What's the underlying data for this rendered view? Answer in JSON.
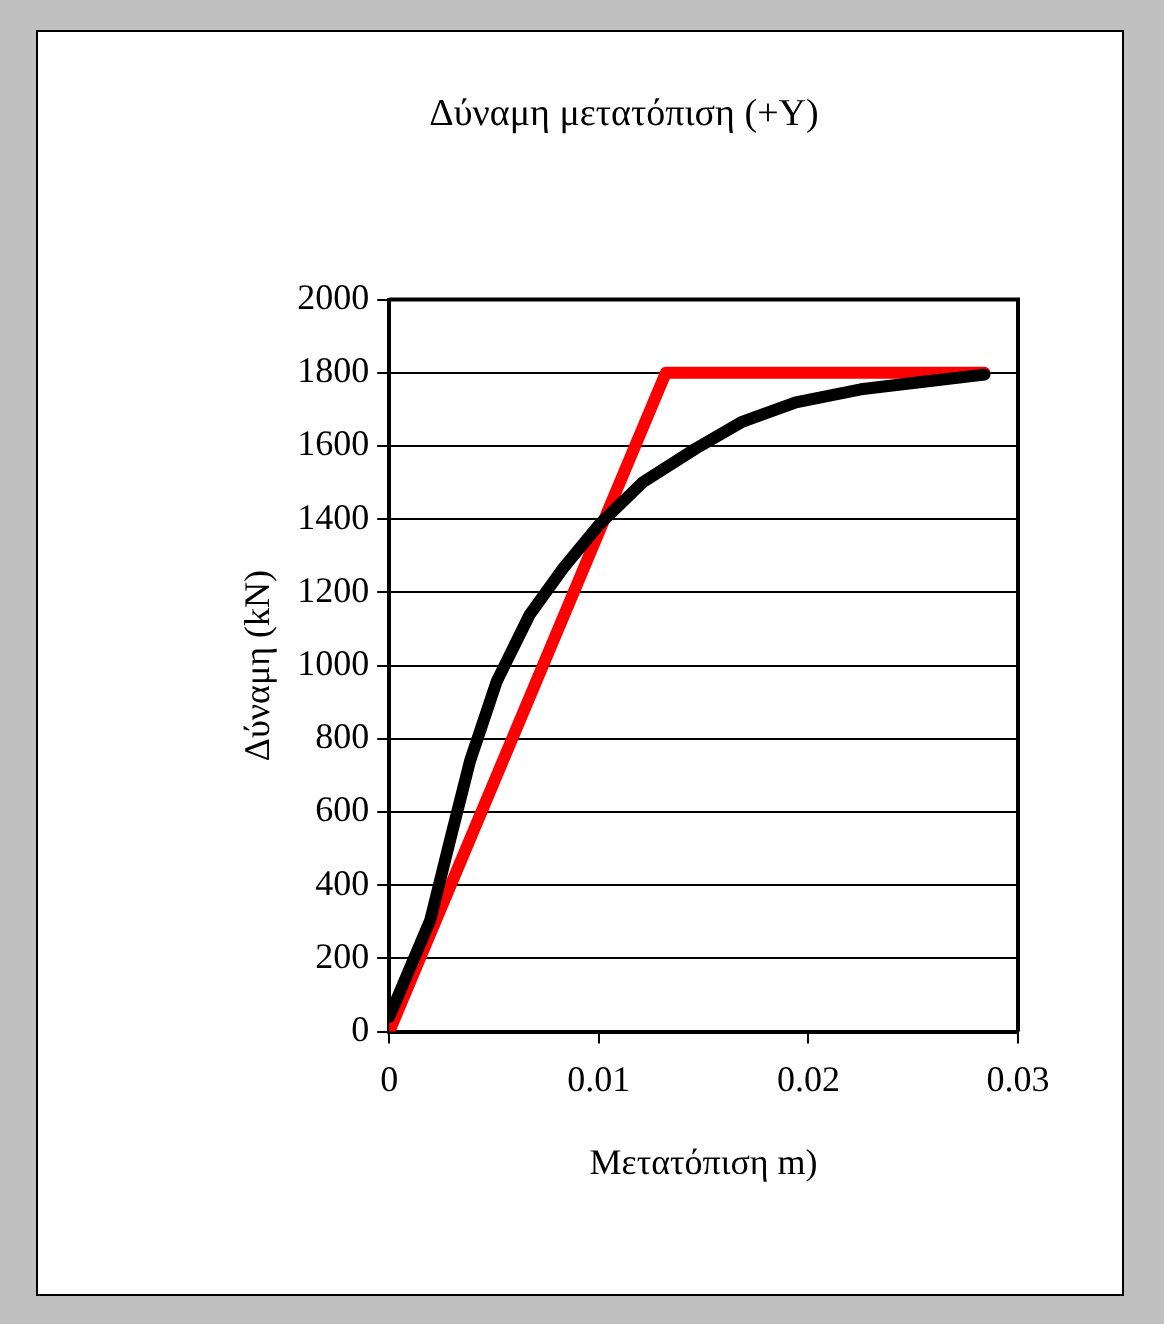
{
  "chart_data": {
    "type": "line",
    "title": "Δύναμη μετατόπιση (+Y)",
    "xlabel": "Μετατόπιση m)",
    "ylabel": "Δύναμη (kN)",
    "xlim": [
      0,
      0.03
    ],
    "xticks": [
      0,
      0.01,
      0.02,
      0.03
    ],
    "ylim": [
      0,
      2000
    ],
    "yticks": [
      0,
      200,
      400,
      600,
      800,
      1000,
      1200,
      1400,
      1600,
      1800,
      2000
    ],
    "grid": "y",
    "legend": false,
    "marker": "none",
    "line_style": "solid",
    "series": [
      {
        "color": "#000000",
        "x": [
          0,
          0.00196,
          0.0029,
          0.00386,
          0.00513,
          0.0067,
          0.0083,
          0.01,
          0.0121,
          0.0146,
          0.0168,
          0.0194,
          0.0225,
          0.0257,
          0.0284
        ],
        "values": [
          40,
          305,
          522,
          740,
          957,
          1139,
          1266,
          1384,
          1501,
          1592,
          1665,
          1719,
          1755,
          1777,
          1795
        ]
      },
      {
        "color": "#ff0000",
        "x": [
          0,
          0.0132,
          0.0284
        ],
        "values": [
          0,
          1800,
          1800
        ]
      }
    ]
  }
}
